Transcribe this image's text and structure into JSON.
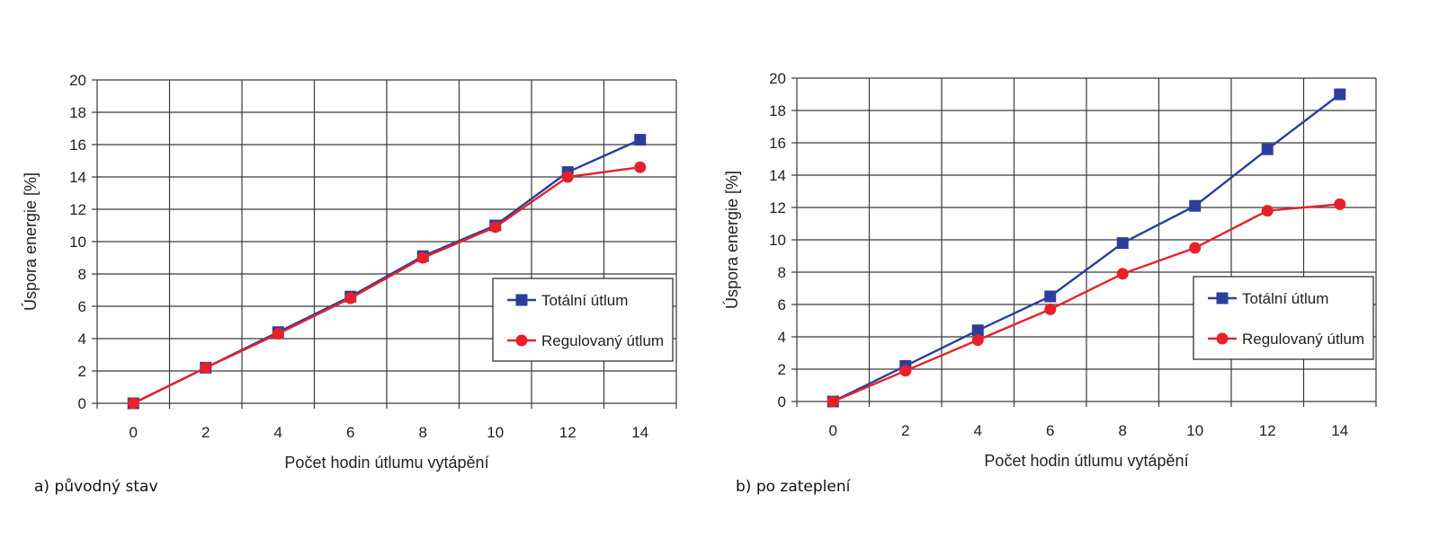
{
  "colors": {
    "series_total": "#2b3f9a",
    "series_regulated": "#e8202a",
    "grid": "#3a3a3a"
  },
  "panels": [
    {
      "caption": "a) původný stav",
      "legend": {
        "total_label": "Totální útlum",
        "regulated_label": "Regulovaný útlum"
      },
      "chart_data": {
        "type": "line",
        "xlabel": "Počet hodin útlumu vytápění",
        "ylabel": "Úspora energie [%]",
        "x": [
          0,
          2,
          4,
          6,
          8,
          10,
          12,
          14
        ],
        "xticks": [
          "0",
          "2",
          "4",
          "6",
          "8",
          "10",
          "12",
          "14"
        ],
        "yticks": [
          "0",
          "2",
          "4",
          "6",
          "8",
          "10",
          "12",
          "14",
          "16",
          "18",
          "20"
        ],
        "ylim": [
          0,
          20
        ],
        "grid": true,
        "legend_position": "right",
        "series": [
          {
            "name": "Totální útlum",
            "marker": "square",
            "values": [
              0,
              2.2,
              4.4,
              6.6,
              9.1,
              11.0,
              14.3,
              16.3
            ]
          },
          {
            "name": "Regulovaný útlum",
            "marker": "circle",
            "values": [
              0,
              2.2,
              4.3,
              6.5,
              9.0,
              10.9,
              14.0,
              14.6
            ]
          }
        ]
      }
    },
    {
      "caption": "b) po zateplení",
      "legend": {
        "total_label": "Totální útlum",
        "regulated_label": "Regulovaný útlum"
      },
      "chart_data": {
        "type": "line",
        "xlabel": "Počet hodin útlumu vytápění",
        "ylabel": "Úspora energie [%]",
        "x": [
          0,
          2,
          4,
          6,
          8,
          10,
          12,
          14
        ],
        "xticks": [
          "0",
          "2",
          "4",
          "6",
          "8",
          "10",
          "12",
          "14"
        ],
        "yticks": [
          "0",
          "2",
          "4",
          "6",
          "8",
          "10",
          "12",
          "14",
          "16",
          "18",
          "20"
        ],
        "ylim": [
          0,
          20
        ],
        "grid": true,
        "legend_position": "right",
        "series": [
          {
            "name": "Totální útlum",
            "marker": "square",
            "values": [
              0,
              2.2,
              4.4,
              6.5,
              9.8,
              12.1,
              15.6,
              19.0
            ]
          },
          {
            "name": "Regulovaný útlum",
            "marker": "circle",
            "values": [
              0,
              1.9,
              3.8,
              5.7,
              7.9,
              9.5,
              11.8,
              12.2
            ]
          }
        ]
      }
    }
  ]
}
